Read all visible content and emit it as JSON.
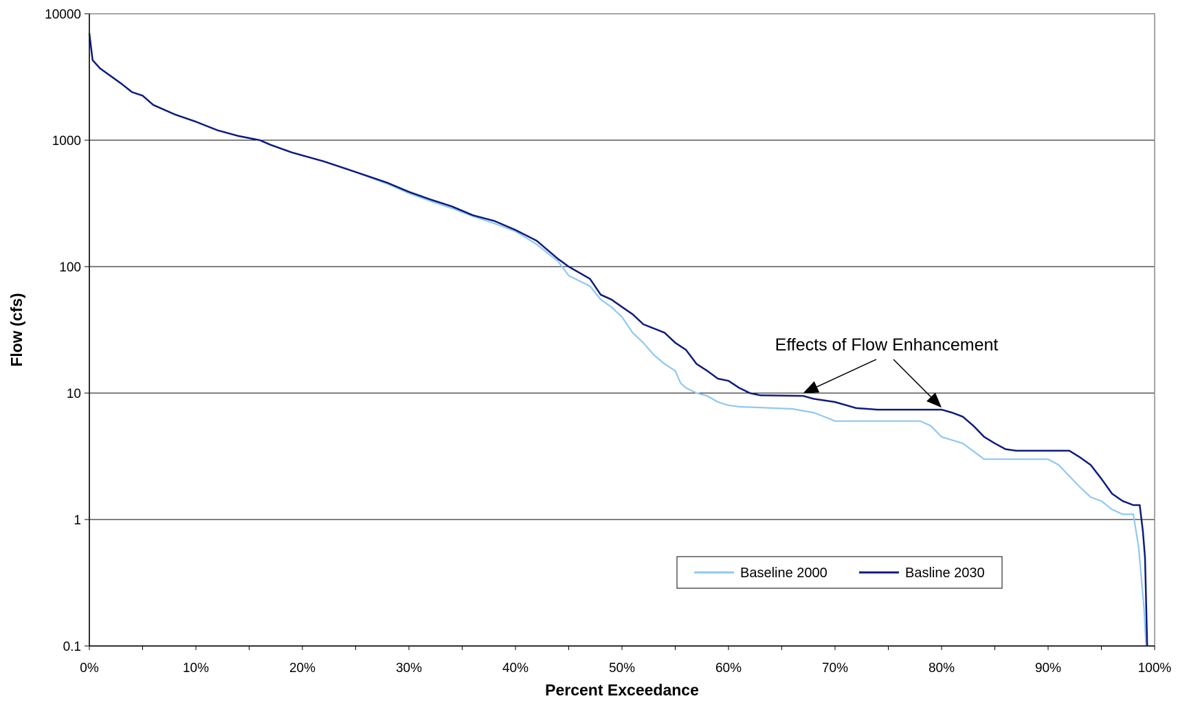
{
  "chart_data": {
    "type": "line",
    "title": "",
    "xlabel": "Percent Exceedance",
    "ylabel": "Flow (cfs)",
    "x_scale": "linear",
    "y_scale": "log",
    "xlim": [
      0,
      100
    ],
    "ylim": [
      0.1,
      10000
    ],
    "x_ticks": [
      "0%",
      "10%",
      "20%",
      "30%",
      "40%",
      "50%",
      "60%",
      "70%",
      "80%",
      "90%",
      "100%"
    ],
    "y_ticks": [
      "10000",
      "1000",
      "100",
      "10",
      "1",
      "0.1"
    ],
    "grid": "horizontal",
    "legend_position": "bottom-right",
    "annotation": {
      "text": "Effects of Flow Enhancement",
      "arrow_targets": [
        [
          67,
          9.5
        ],
        [
          80,
          7.3
        ]
      ]
    },
    "series": [
      {
        "name": "Baseline 2000",
        "color": "#8ec8f2",
        "points": [
          [
            0,
            7000
          ],
          [
            0.3,
            4300
          ],
          [
            1,
            3700
          ],
          [
            3,
            2800
          ],
          [
            4,
            2400
          ],
          [
            5,
            2250
          ],
          [
            6,
            1900
          ],
          [
            8,
            1600
          ],
          [
            10,
            1400
          ],
          [
            12,
            1200
          ],
          [
            14,
            1080
          ],
          [
            16,
            1000
          ],
          [
            17,
            920
          ],
          [
            19,
            800
          ],
          [
            22,
            680
          ],
          [
            25,
            560
          ],
          [
            28,
            450
          ],
          [
            30,
            380
          ],
          [
            32,
            330
          ],
          [
            34,
            290
          ],
          [
            36,
            250
          ],
          [
            38,
            220
          ],
          [
            40,
            190
          ],
          [
            42,
            150
          ],
          [
            44,
            110
          ],
          [
            45,
            85
          ],
          [
            47,
            70
          ],
          [
            48,
            55
          ],
          [
            49,
            48
          ],
          [
            50,
            40
          ],
          [
            51,
            30
          ],
          [
            52,
            25
          ],
          [
            53,
            20
          ],
          [
            54,
            17
          ],
          [
            55,
            15
          ],
          [
            55.5,
            12
          ],
          [
            56,
            11
          ],
          [
            57,
            10
          ],
          [
            58,
            9.5
          ],
          [
            59,
            8.5
          ],
          [
            60,
            8
          ],
          [
            61,
            7.8
          ],
          [
            66,
            7.5
          ],
          [
            68,
            7
          ],
          [
            69,
            6.5
          ],
          [
            70,
            6
          ],
          [
            78,
            6
          ],
          [
            79,
            5.5
          ],
          [
            80,
            4.5
          ],
          [
            82,
            4
          ],
          [
            84,
            3
          ],
          [
            90,
            3
          ],
          [
            91,
            2.7
          ],
          [
            92,
            2.2
          ],
          [
            93,
            1.8
          ],
          [
            94,
            1.5
          ],
          [
            95,
            1.4
          ],
          [
            96,
            1.2
          ],
          [
            97,
            1.1
          ],
          [
            98,
            1.1
          ],
          [
            98.5,
            0.6
          ],
          [
            99,
            0.2
          ],
          [
            99.2,
            0.1
          ]
        ]
      },
      {
        "name": "Basline 2030",
        "color": "#0d1a7e",
        "points": [
          [
            0,
            7000
          ],
          [
            0.3,
            4300
          ],
          [
            1,
            3700
          ],
          [
            3,
            2800
          ],
          [
            4,
            2400
          ],
          [
            5,
            2250
          ],
          [
            6,
            1900
          ],
          [
            8,
            1600
          ],
          [
            10,
            1400
          ],
          [
            12,
            1200
          ],
          [
            14,
            1080
          ],
          [
            16,
            1000
          ],
          [
            17,
            920
          ],
          [
            19,
            800
          ],
          [
            22,
            680
          ],
          [
            25,
            560
          ],
          [
            28,
            460
          ],
          [
            30,
            390
          ],
          [
            32,
            340
          ],
          [
            34,
            300
          ],
          [
            36,
            255
          ],
          [
            38,
            230
          ],
          [
            40,
            195
          ],
          [
            42,
            160
          ],
          [
            44,
            115
          ],
          [
            45,
            100
          ],
          [
            47,
            80
          ],
          [
            48,
            60
          ],
          [
            49,
            55
          ],
          [
            50,
            48
          ],
          [
            51,
            42
          ],
          [
            52,
            35
          ],
          [
            54,
            30
          ],
          [
            55,
            25
          ],
          [
            56,
            22
          ],
          [
            57,
            17
          ],
          [
            58,
            15
          ],
          [
            59,
            13
          ],
          [
            60,
            12.5
          ],
          [
            61,
            11
          ],
          [
            62,
            10
          ],
          [
            63,
            9.6
          ],
          [
            67,
            9.5
          ],
          [
            68,
            9
          ],
          [
            70,
            8.5
          ],
          [
            72,
            7.6
          ],
          [
            74,
            7.4
          ],
          [
            80,
            7.4
          ],
          [
            81,
            7
          ],
          [
            82,
            6.5
          ],
          [
            83,
            5.5
          ],
          [
            84,
            4.5
          ],
          [
            85,
            4
          ],
          [
            86,
            3.6
          ],
          [
            87,
            3.5
          ],
          [
            92,
            3.5
          ],
          [
            93,
            3.1
          ],
          [
            94,
            2.7
          ],
          [
            95,
            2.1
          ],
          [
            96,
            1.6
          ],
          [
            97,
            1.4
          ],
          [
            98,
            1.3
          ],
          [
            98.6,
            1.3
          ],
          [
            98.9,
            0.8
          ],
          [
            99.1,
            0.5
          ],
          [
            99.3,
            0.1
          ]
        ]
      }
    ]
  }
}
